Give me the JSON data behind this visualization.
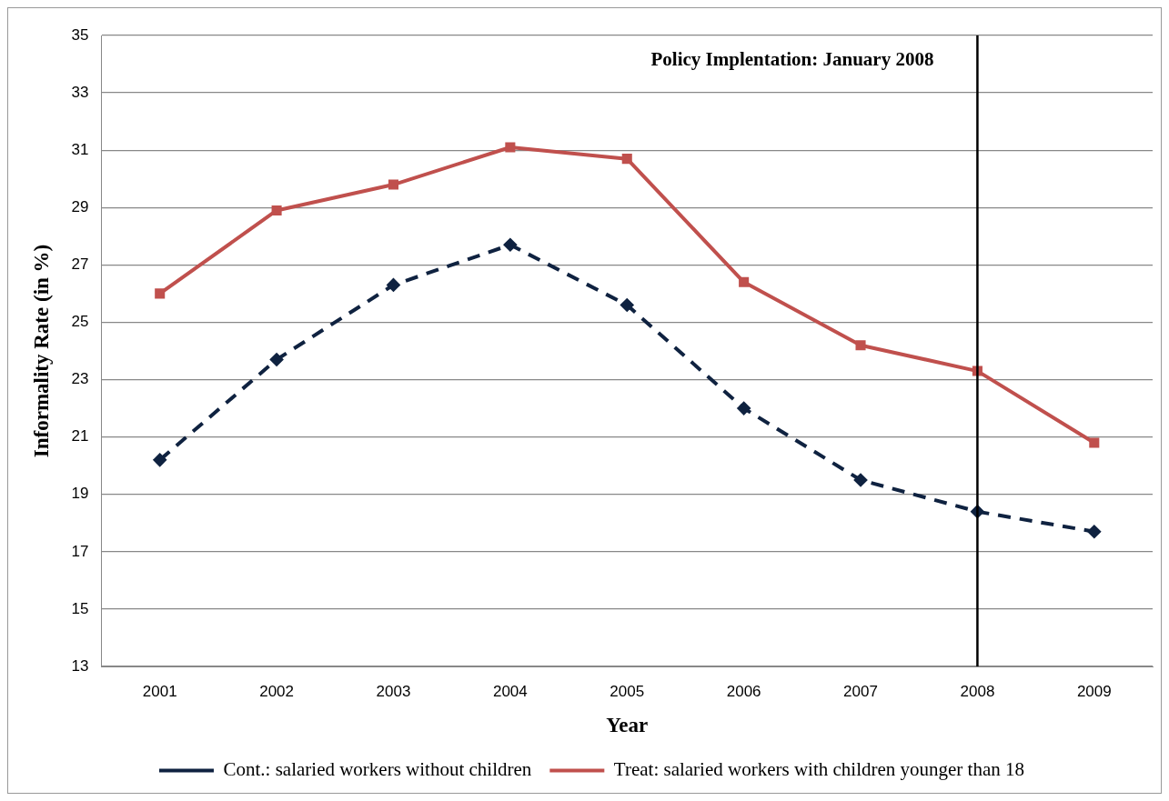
{
  "chart_data": {
    "type": "line",
    "xlabel": "Year",
    "ylabel": "Informality Rate (in %)",
    "categories": [
      "2001",
      "2002",
      "2003",
      "2004",
      "2005",
      "2006",
      "2007",
      "2008",
      "2009"
    ],
    "series": [
      {
        "name": "Cont.: salaried workers without children",
        "color": "#0f2240",
        "values": [
          20.2,
          23.7,
          26.3,
          27.7,
          25.6,
          22.0,
          19.5,
          18.4,
          17.7
        ],
        "marker": "diamond",
        "line_style": "dashed"
      },
      {
        "name": "Treat: salaried workers with children younger than 18",
        "color": "#c0504d",
        "values": [
          26.0,
          28.9,
          29.8,
          31.1,
          30.7,
          26.4,
          24.2,
          23.3,
          20.8
        ],
        "marker": "square",
        "line_style": "solid"
      }
    ],
    "ylim": [
      13,
      35
    ],
    "yticks": [
      13,
      15,
      17,
      19,
      21,
      23,
      25,
      27,
      29,
      31,
      33,
      35
    ],
    "grid": "y",
    "legend": "bottom",
    "ref_lines": [
      {
        "axis": "x",
        "value": "2008",
        "label": "Policy Implentation: January 2008",
        "color": "#000000",
        "line_style": "solid"
      }
    ]
  }
}
